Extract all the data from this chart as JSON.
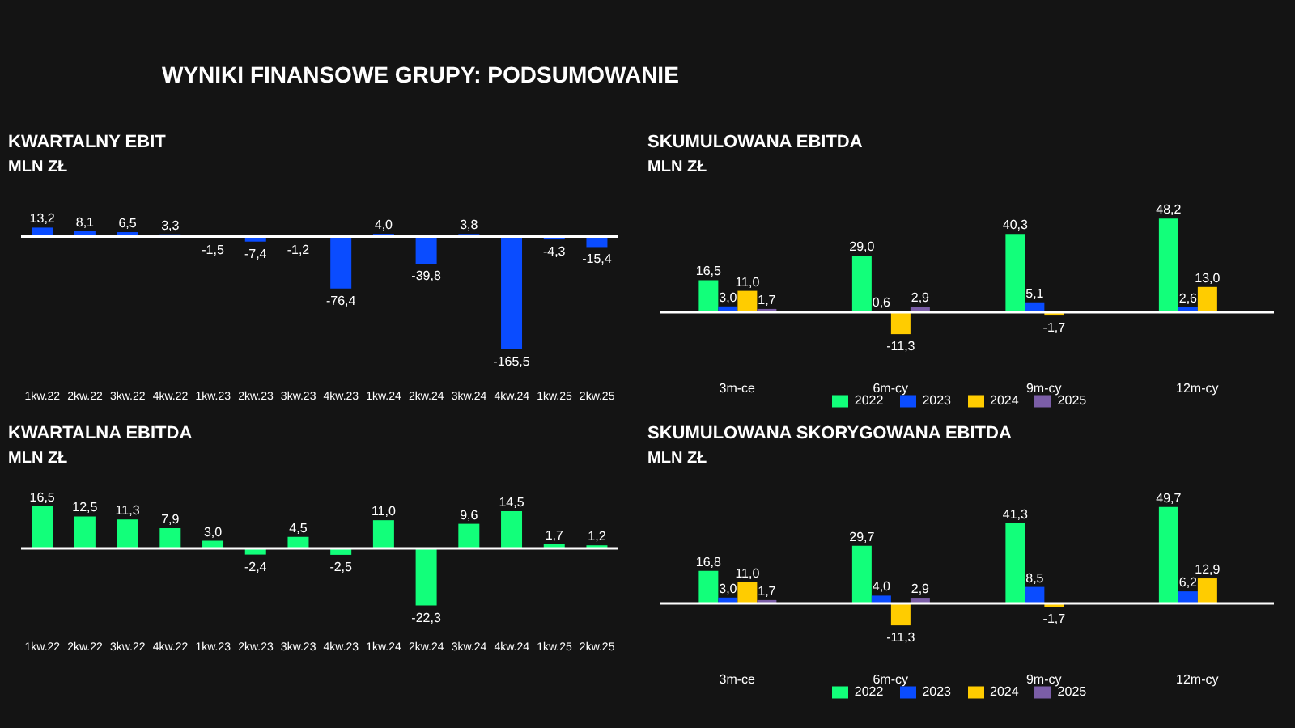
{
  "chart_data": [
    {
      "type": "other",
      "title": "WYNIKI FINANSOWE GRUPY: PODSUMOWANIE"
    },
    {
      "type": "bar",
      "title": "KWARTALNY EBIT",
      "subtitle": "MLN ZŁ",
      "categories": [
        "1kw.22",
        "2kw.22",
        "3kw.22",
        "4kw.22",
        "1kw.23",
        "2kw.23",
        "3kw.23",
        "4kw.23",
        "1kw.24",
        "2kw.24",
        "3kw.24",
        "4kw.24",
        "1kw.25",
        "2kw.25"
      ],
      "series": [
        {
          "color": "#0a4cff",
          "values": [
            13.2,
            8.1,
            6.5,
            3.3,
            -1.5,
            -7.4,
            -1.2,
            -76.4,
            4.0,
            -39.8,
            3.8,
            -165.5,
            -4.3,
            -15.4
          ],
          "value_labels": [
            "13,2",
            "8,1",
            "6,5",
            "3,3",
            "-1,5",
            "-7,4",
            "-1,2",
            "-76,4",
            "4,0",
            "-39,8",
            "3,8",
            "-165,5",
            "-4,3",
            "-15,4"
          ]
        }
      ],
      "legend": false
    },
    {
      "type": "bar",
      "title": "SKUMULOWANA EBITDA",
      "subtitle": "MLN ZŁ",
      "categories": [
        "3m-ce",
        "6m-cy",
        "9m-cy",
        "12m-cy"
      ],
      "series": [
        {
          "name": "2022",
          "color": "#12ff7a",
          "values": [
            16.5,
            29.0,
            40.3,
            48.2
          ],
          "value_labels": [
            "16,5",
            "29,0",
            "40,3",
            "48,2"
          ]
        },
        {
          "name": "2023",
          "color": "#0a4cff",
          "values": [
            3.0,
            0.6,
            5.1,
            2.6
          ],
          "value_labels": [
            "3,0",
            "0,6",
            "5,1",
            "2,6"
          ]
        },
        {
          "name": "2024",
          "color": "#ffcc00",
          "values": [
            11.0,
            -11.3,
            -1.7,
            13.0
          ],
          "value_labels": [
            "11,0",
            "-11,3",
            "-1,7",
            "13,0"
          ]
        },
        {
          "name": "2025",
          "color": "#7b5ea7",
          "values": [
            1.7,
            2.9,
            null,
            null
          ],
          "value_labels": [
            "1,7",
            "2,9",
            null,
            null
          ]
        }
      ],
      "legend": "bottom"
    },
    {
      "type": "bar",
      "title": "KWARTALNA EBITDA",
      "subtitle": "MLN ZŁ",
      "categories": [
        "1kw.22",
        "2kw.22",
        "3kw.22",
        "4kw.22",
        "1kw.23",
        "2kw.23",
        "3kw.23",
        "4kw.23",
        "1kw.24",
        "2kw.24",
        "3kw.24",
        "4kw.24",
        "1kw.25",
        "2kw.25"
      ],
      "series": [
        {
          "color": "#12ff7a",
          "values": [
            16.5,
            12.5,
            11.3,
            7.9,
            3.0,
            -2.4,
            4.5,
            -2.5,
            11.0,
            -22.3,
            9.6,
            14.5,
            1.7,
            1.2
          ],
          "value_labels": [
            "16,5",
            "12,5",
            "11,3",
            "7,9",
            "3,0",
            "-2,4",
            "4,5",
            "-2,5",
            "11,0",
            "-22,3",
            "9,6",
            "14,5",
            "1,7",
            "1,2"
          ]
        }
      ],
      "legend": false
    },
    {
      "type": "bar",
      "title": "SKUMULOWANA SKORYGOWANA EBITDA",
      "subtitle": "MLN ZŁ",
      "categories": [
        "3m-ce",
        "6m-cy",
        "9m-cy",
        "12m-cy"
      ],
      "series": [
        {
          "name": "2022",
          "color": "#12ff7a",
          "values": [
            16.8,
            29.7,
            41.3,
            49.7
          ],
          "value_labels": [
            "16,8",
            "29,7",
            "41,3",
            "49,7"
          ]
        },
        {
          "name": "2023",
          "color": "#0a4cff",
          "values": [
            3.0,
            4.0,
            8.5,
            6.2
          ],
          "value_labels": [
            "3,0",
            "4,0",
            "8,5",
            "6,2"
          ]
        },
        {
          "name": "2024",
          "color": "#ffcc00",
          "values": [
            11.0,
            -11.3,
            -1.7,
            12.9
          ],
          "value_labels": [
            "11,0",
            "-11,3",
            "-1,7",
            "12,9"
          ]
        },
        {
          "name": "2025",
          "color": "#7b5ea7",
          "values": [
            1.7,
            2.9,
            null,
            null
          ],
          "value_labels": [
            "1,7",
            "2,9",
            null,
            null
          ]
        }
      ],
      "legend": "bottom"
    }
  ]
}
